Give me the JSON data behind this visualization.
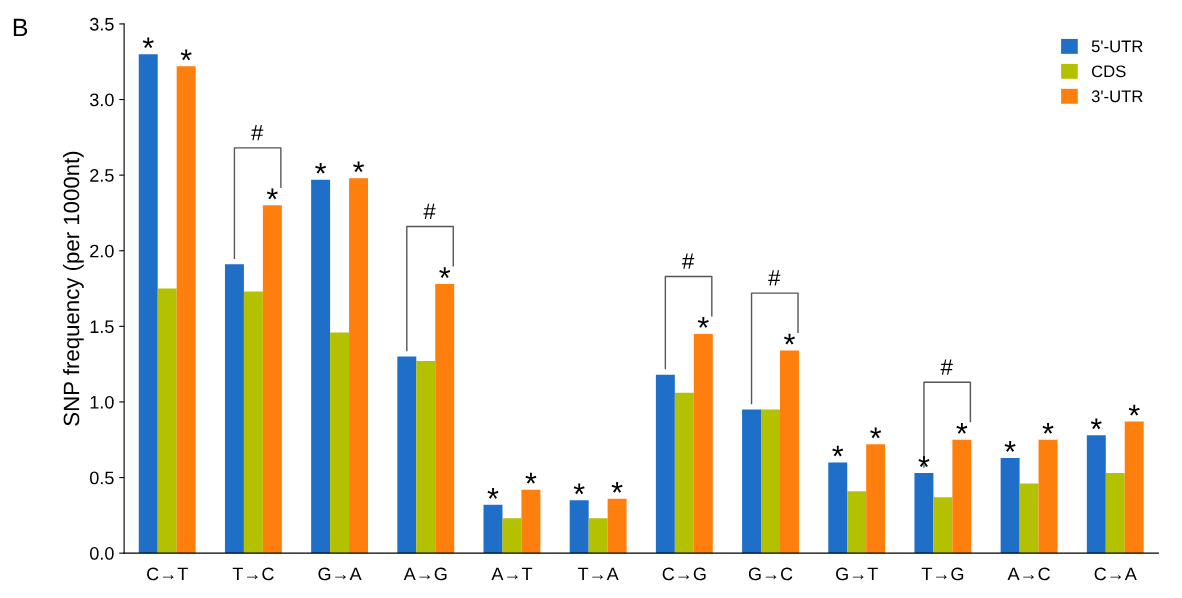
{
  "chart_data": {
    "type": "bar",
    "ylabel": "SNP frequency (per 1000nt)",
    "categories": [
      "C→T",
      "T→C",
      "G→A",
      "A→G",
      "A→T",
      "T→A",
      "C→G",
      "G→C",
      "G→T",
      "T→G",
      "A→C",
      "C→A"
    ],
    "series": [
      {
        "name": "5'-UTR",
        "color": "#1f6ec8",
        "values": [
          3.3,
          1.91,
          2.47,
          1.3,
          0.32,
          0.35,
          1.18,
          0.95,
          0.6,
          0.53,
          0.63,
          0.78
        ],
        "value_labels": [
          "*",
          null,
          "*",
          null,
          "*",
          "*",
          null,
          null,
          "*",
          "*",
          "*",
          "*"
        ]
      },
      {
        "name": "CDS",
        "color": "#b3c100",
        "values": [
          1.75,
          1.73,
          1.46,
          1.27,
          0.23,
          0.23,
          1.06,
          0.95,
          0.41,
          0.37,
          0.46,
          0.53
        ]
      },
      {
        "name": "3'-UTR",
        "color": "#ff7f0e",
        "values": [
          3.22,
          2.3,
          2.48,
          1.78,
          0.42,
          0.36,
          1.45,
          1.34,
          0.72,
          0.75,
          0.75,
          0.87
        ],
        "value_labels": [
          "*",
          "*",
          "*",
          "*",
          "*",
          "*",
          "*",
          "*",
          "*",
          "*",
          "*",
          "*"
        ]
      }
    ],
    "ylim": [
      0,
      3.5
    ],
    "yticks": [
      {
        "value": 0,
        "label": "0.0"
      },
      0.5,
      {
        "value": 1,
        "label": "1.0"
      },
      1.5,
      {
        "value": 2,
        "label": "2.0"
      },
      2.5,
      {
        "value": 3,
        "label": "3.0"
      },
      3.5
    ],
    "legend": "top right",
    "grid": false,
    "annotations": [
      "B",
      "#",
      "#",
      "#",
      "#",
      "#"
    ]
  }
}
